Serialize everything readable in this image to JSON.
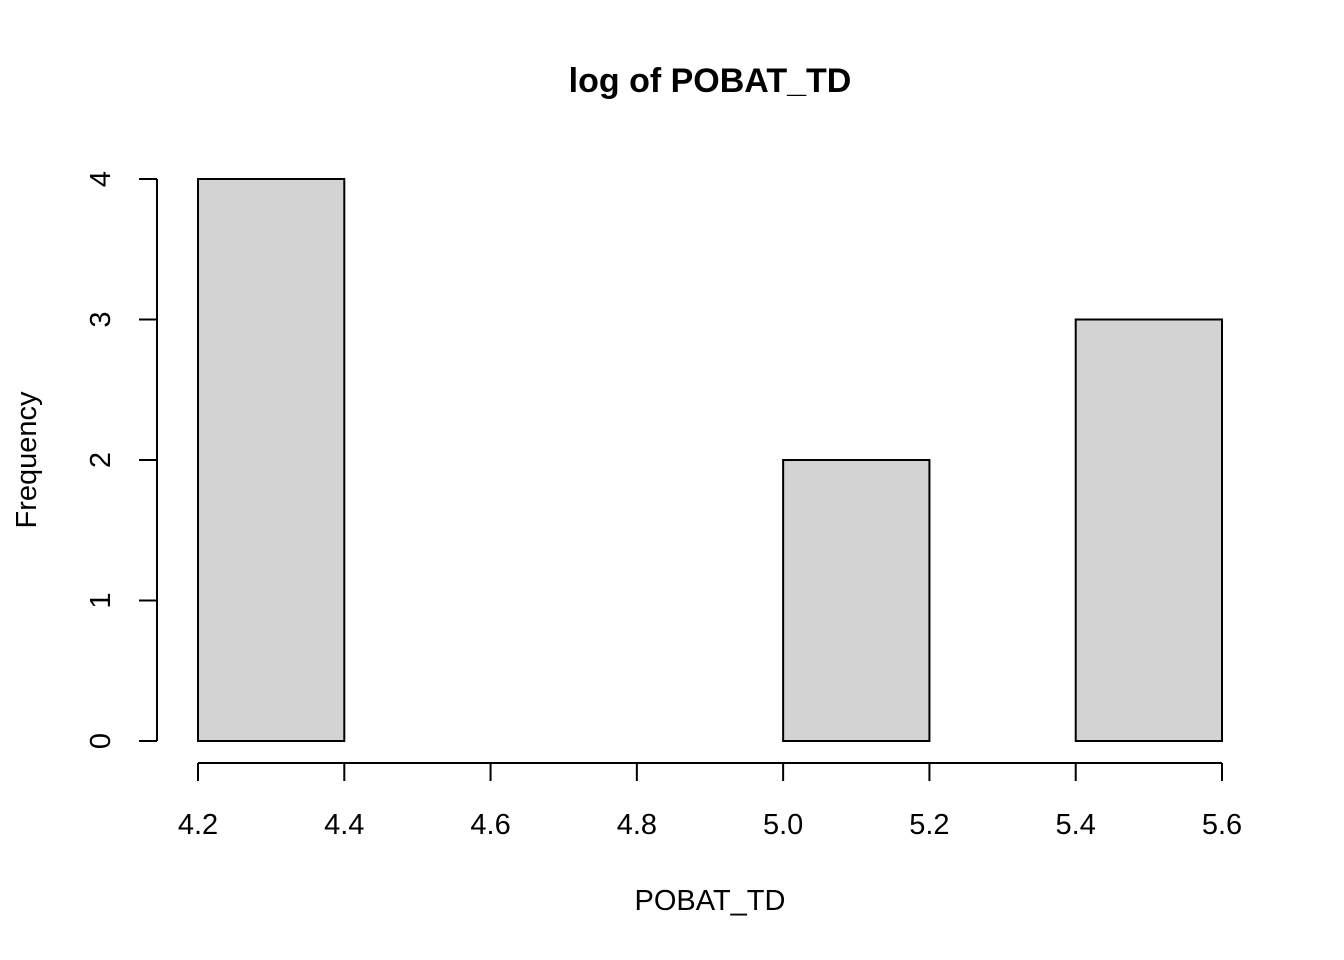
{
  "chart_data": {
    "type": "bar",
    "title": "log of POBAT_TD",
    "xlabel": "POBAT_TD",
    "ylabel": "Frequency",
    "bins": [
      {
        "from": 4.2,
        "to": 4.4,
        "count": 4
      },
      {
        "from": 4.4,
        "to": 4.6,
        "count": 0
      },
      {
        "from": 4.6,
        "to": 4.8,
        "count": 0
      },
      {
        "from": 4.8,
        "to": 5.0,
        "count": 0
      },
      {
        "from": 5.0,
        "to": 5.2,
        "count": 2
      },
      {
        "from": 5.2,
        "to": 5.4,
        "count": 0
      },
      {
        "from": 5.4,
        "to": 5.6,
        "count": 3
      }
    ],
    "xlim": [
      4.2,
      5.6
    ],
    "ylim": [
      0,
      4
    ],
    "x_ticks": [
      "4.2",
      "4.4",
      "4.6",
      "4.8",
      "5.0",
      "5.2",
      "5.4",
      "5.6"
    ],
    "y_ticks": [
      "0",
      "1",
      "2",
      "3",
      "4"
    ],
    "bar_fill": "#d3d3d3",
    "bar_stroke": "#000000",
    "grid": false,
    "legend": "none"
  }
}
